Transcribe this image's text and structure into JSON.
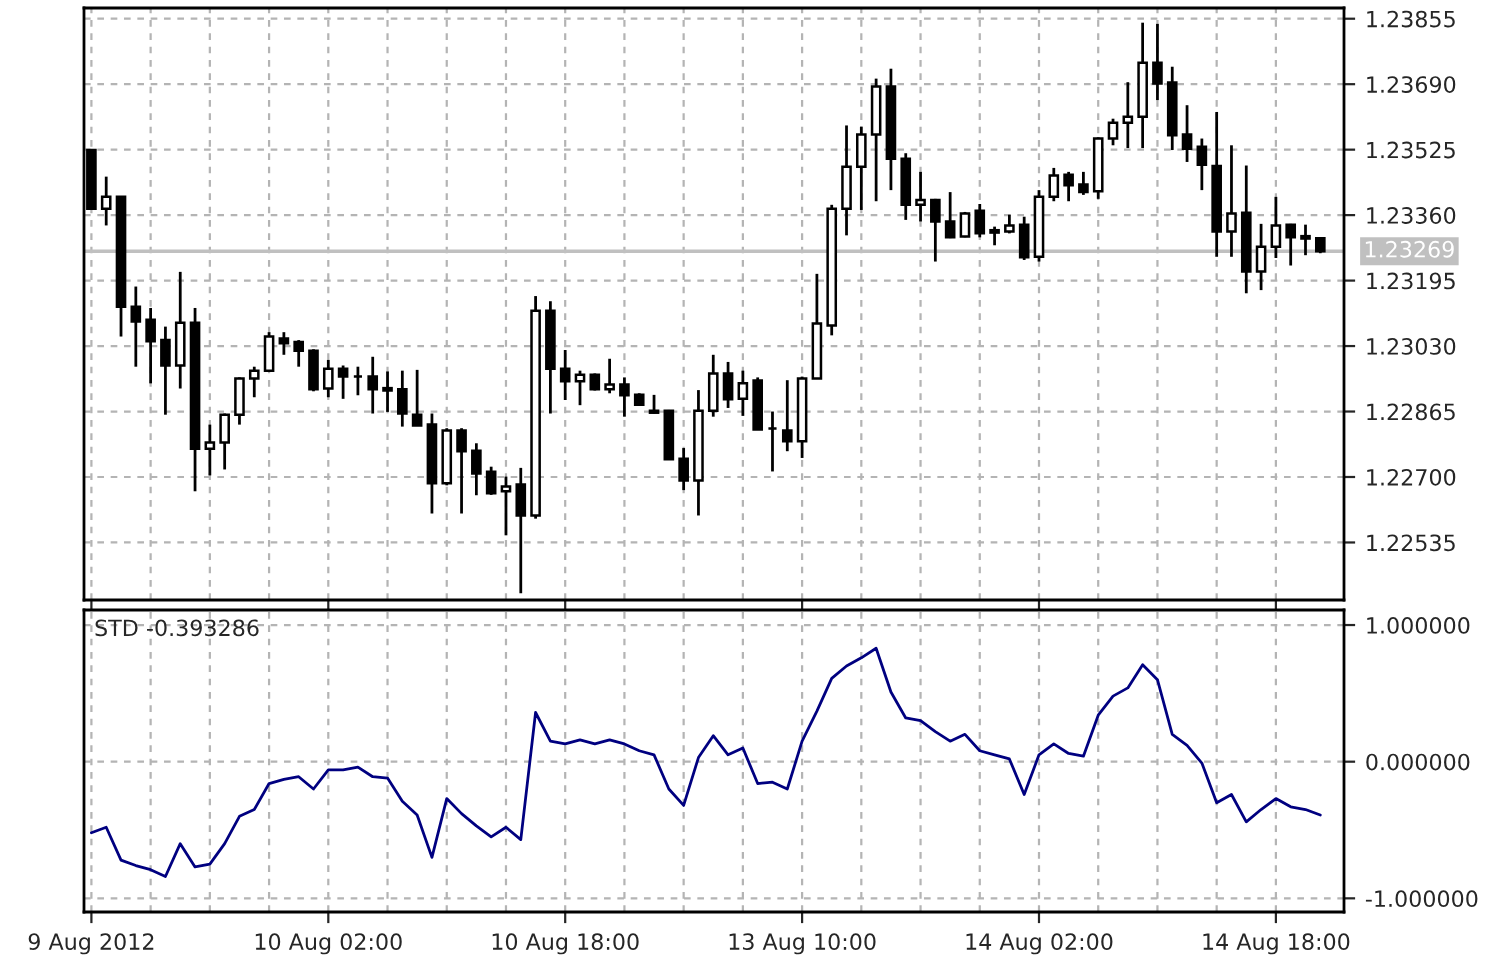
{
  "chart_data": [
    {
      "type": "candlestick",
      "categories": [
        null,
        null,
        null,
        null,
        null,
        null,
        null,
        null,
        null,
        null,
        null,
        null,
        null,
        null,
        null,
        null,
        null,
        null,
        null,
        null,
        null,
        null,
        null,
        null,
        null,
        null,
        null,
        null,
        null,
        null,
        null,
        null,
        null,
        null,
        null,
        null,
        null,
        null,
        null,
        null,
        null,
        null,
        null,
        null,
        null,
        null,
        null,
        null,
        null,
        null,
        null,
        null,
        null,
        null,
        null,
        null,
        null,
        null,
        null,
        null,
        null,
        null,
        null,
        null,
        null,
        null,
        null,
        null,
        null,
        null,
        null,
        null,
        null,
        null,
        null,
        null,
        null,
        null,
        null,
        null,
        null,
        null,
        null,
        null
      ],
      "ohlc": [
        [
          1.23524,
          1.23524,
          1.23376,
          1.23376
        ],
        [
          1.23376,
          1.23457,
          1.23334,
          1.23406
        ],
        [
          1.23406,
          1.23406,
          1.23054,
          1.23129
        ],
        [
          1.23129,
          1.2318,
          1.22978,
          1.23092
        ],
        [
          1.23096,
          1.23126,
          1.22936,
          1.23042
        ],
        [
          1.23045,
          1.23079,
          1.22857,
          1.22981
        ],
        [
          1.22981,
          1.23217,
          1.22923,
          1.23089
        ],
        [
          1.23089,
          1.23126,
          1.22664,
          1.22771
        ],
        [
          1.22771,
          1.22832,
          1.22704,
          1.22787
        ],
        [
          1.22787,
          1.2286,
          1.22719,
          1.22857
        ],
        [
          1.22857,
          1.22951,
          1.22832,
          1.22948
        ],
        [
          1.22948,
          1.22978,
          1.22901,
          1.22968
        ],
        [
          1.22968,
          1.23065,
          1.22968,
          1.23054
        ],
        [
          1.23049,
          1.23065,
          1.23008,
          1.23037
        ],
        [
          1.2304,
          1.23045,
          1.22978,
          1.23018
        ],
        [
          1.23018,
          1.23022,
          1.22916,
          1.22921
        ],
        [
          1.22923,
          1.22995,
          1.22901,
          1.22973
        ],
        [
          1.22973,
          1.22981,
          1.22897,
          1.22953
        ],
        [
          1.22953,
          1.22978,
          1.22906,
          1.22953
        ],
        [
          1.22953,
          1.23003,
          1.2286,
          1.22921
        ],
        [
          1.22924,
          1.22966,
          1.22864,
          1.22918
        ],
        [
          1.22921,
          1.22968,
          1.22827,
          1.2286
        ],
        [
          1.22857,
          1.2297,
          1.2283,
          1.2283
        ],
        [
          1.22832,
          1.2286,
          1.22608,
          1.22684
        ],
        [
          1.22684,
          1.22823,
          1.22679,
          1.22817
        ],
        [
          1.22817,
          1.22823,
          1.22608,
          1.22765
        ],
        [
          1.22766,
          1.22785,
          1.22654,
          1.22709
        ],
        [
          1.22713,
          1.22726,
          1.22655,
          1.22659
        ],
        [
          1.22664,
          1.22701,
          1.22553,
          1.22676
        ],
        [
          1.22681,
          1.22723,
          1.22407,
          1.22603
        ],
        [
          1.22603,
          1.23156,
          1.22595,
          1.23119
        ],
        [
          1.23119,
          1.23143,
          1.2286,
          1.22973
        ],
        [
          1.22973,
          1.2302,
          1.22894,
          1.22941
        ],
        [
          1.22941,
          1.22968,
          1.22881,
          1.22958
        ],
        [
          1.22958,
          1.22961,
          1.22918,
          1.22921
        ],
        [
          1.22921,
          1.22998,
          1.22911,
          1.22933
        ],
        [
          1.22933,
          1.22951,
          1.22852,
          1.22906
        ],
        [
          1.22907,
          1.22911,
          1.22881,
          1.22882
        ],
        [
          1.22867,
          1.22907,
          1.2286,
          1.22862
        ],
        [
          1.22867,
          1.22869,
          1.22743,
          1.22745
        ],
        [
          1.22746,
          1.22773,
          1.22667,
          1.22691
        ],
        [
          1.22691,
          1.22919,
          1.22603,
          1.22867
        ],
        [
          1.22867,
          1.23008,
          1.22852,
          1.22961
        ],
        [
          1.22961,
          1.2299,
          1.22874,
          1.22896
        ],
        [
          1.22897,
          1.22968,
          1.22854,
          1.22936
        ],
        [
          1.22943,
          1.22951,
          1.2282,
          1.2282
        ],
        [
          1.22822,
          1.22865,
          1.22714,
          1.22822
        ],
        [
          1.22817,
          1.22944,
          1.22765,
          1.2279
        ],
        [
          1.2279,
          1.22953,
          1.22748,
          1.22948
        ],
        [
          1.22948,
          1.23212,
          1.22948,
          1.23087
        ],
        [
          1.23082,
          1.23386,
          1.23057,
          1.23376
        ],
        [
          1.23376,
          1.23586,
          1.23309,
          1.23482
        ],
        [
          1.23482,
          1.23583,
          1.23373,
          1.23563
        ],
        [
          1.23563,
          1.23704,
          1.23395,
          1.23684
        ],
        [
          1.23684,
          1.23729,
          1.23423,
          1.23502
        ],
        [
          1.23502,
          1.23516,
          1.23348,
          1.23386
        ],
        [
          1.23386,
          1.23469,
          1.23344,
          1.23398
        ],
        [
          1.23398,
          1.23401,
          1.23243,
          1.23344
        ],
        [
          1.23344,
          1.23418,
          1.23302,
          1.23304
        ],
        [
          1.23306,
          1.23368,
          1.23304,
          1.23364
        ],
        [
          1.23371,
          1.23388,
          1.23304,
          1.23314
        ],
        [
          1.23322,
          1.23331,
          1.23284,
          1.23316
        ],
        [
          1.23319,
          1.23361,
          1.23314,
          1.23334
        ],
        [
          1.23336,
          1.23356,
          1.23247,
          1.23254
        ],
        [
          1.23255,
          1.23423,
          1.23243,
          1.23406
        ],
        [
          1.23406,
          1.23479,
          1.23395,
          1.2346
        ],
        [
          1.23462,
          1.23469,
          1.23395,
          1.23435
        ],
        [
          1.23437,
          1.23469,
          1.23411,
          1.23418
        ],
        [
          1.2342,
          1.23556,
          1.23401,
          1.23553
        ],
        [
          1.23553,
          1.23603,
          1.23536,
          1.23593
        ],
        [
          1.23593,
          1.23695,
          1.23529,
          1.23608
        ],
        [
          1.23608,
          1.23845,
          1.23529,
          1.23744
        ],
        [
          1.23744,
          1.23842,
          1.2365,
          1.23692
        ],
        [
          1.23694,
          1.23734,
          1.23524,
          1.23561
        ],
        [
          1.23563,
          1.23637,
          1.23494,
          1.23527
        ],
        [
          1.23532,
          1.23553,
          1.23423,
          1.23487
        ],
        [
          1.23484,
          1.2362,
          1.23255,
          1.23319
        ],
        [
          1.23319,
          1.23536,
          1.23255,
          1.23364
        ],
        [
          1.23366,
          1.23485,
          1.23163,
          1.23218
        ],
        [
          1.23218,
          1.23338,
          1.23171,
          1.2328
        ],
        [
          1.2328,
          1.23406,
          1.23252,
          1.23334
        ],
        [
          1.23336,
          1.23338,
          1.23233,
          1.23304
        ],
        [
          1.23307,
          1.23336,
          1.23259,
          1.23301
        ],
        [
          1.23302,
          1.23304,
          1.23264,
          1.23269
        ]
      ],
      "ylim": [
        1.2239,
        1.23882
      ],
      "yticks": [
        {
          "value": 1.22535,
          "label": "1.22535"
        },
        {
          "value": 1.227,
          "label": "1.22700"
        },
        {
          "value": 1.22865,
          "label": "1.22865"
        },
        {
          "value": 1.2303,
          "label": "1.23030"
        },
        {
          "value": 1.23195,
          "label": "1.23195"
        },
        {
          "value": 1.2336,
          "label": "1.23360"
        },
        {
          "value": 1.23525,
          "label": "1.23525"
        },
        {
          "value": 1.2369,
          "label": "1.23690"
        },
        {
          "value": 1.23855,
          "label": "1.23855"
        }
      ],
      "ref_lines": [
        {
          "axis": "y",
          "value": 1.23269,
          "label": "1.23269",
          "color": "#c0c0c0"
        }
      ],
      "grid": true,
      "tick_labels": "y"
    },
    {
      "type": "line",
      "title": "STD -0.393286",
      "categories": [
        "9 Aug 2012",
        null,
        null,
        null,
        null,
        null,
        null,
        null,
        null,
        null,
        null,
        null,
        null,
        null,
        null,
        null,
        "10 Aug 02:00",
        null,
        null,
        null,
        null,
        null,
        null,
        null,
        null,
        null,
        null,
        null,
        null,
        null,
        null,
        null,
        "10 Aug 18:00",
        null,
        null,
        null,
        null,
        null,
        null,
        null,
        null,
        null,
        null,
        null,
        null,
        null,
        null,
        null,
        "13 Aug 10:00",
        null,
        null,
        null,
        null,
        null,
        null,
        null,
        null,
        null,
        null,
        null,
        null,
        null,
        null,
        null,
        "14 Aug 02:00",
        null,
        null,
        null,
        null,
        null,
        null,
        null,
        null,
        null,
        null,
        null,
        null,
        null,
        null,
        null,
        "14 Aug 18:00",
        null,
        null,
        null
      ],
      "series": [
        {
          "color": "#000080",
          "values": [
            -0.52,
            -0.48,
            -0.72,
            -0.76,
            -0.79,
            -0.84,
            -0.6,
            -0.77,
            -0.75,
            -0.6,
            -0.4,
            -0.35,
            -0.16,
            -0.13,
            -0.11,
            -0.2,
            -0.06,
            -0.06,
            -0.04,
            -0.11,
            -0.12,
            -0.29,
            -0.39,
            -0.7,
            -0.27,
            -0.38,
            -0.47,
            -0.55,
            -0.48,
            -0.57,
            0.36,
            0.15,
            0.13,
            0.16,
            0.13,
            0.16,
            0.13,
            0.08,
            0.05,
            -0.2,
            -0.32,
            0.03,
            0.19,
            0.05,
            0.1,
            -0.16,
            -0.15,
            -0.2,
            0.15,
            0.37,
            0.61,
            0.7,
            0.76,
            0.83,
            0.51,
            0.32,
            0.3,
            0.22,
            0.15,
            0.2,
            0.08,
            0.05,
            0.02,
            -0.24,
            0.05,
            0.13,
            0.06,
            0.04,
            0.34,
            0.48,
            0.54,
            0.71,
            0.6,
            0.2,
            0.12,
            -0.01,
            -0.3,
            -0.24,
            -0.44,
            -0.35,
            -0.27,
            -0.33,
            -0.35,
            -0.39
          ]
        }
      ],
      "ylim": [
        -1.1,
        1.11
      ],
      "yticks": [
        {
          "value": -1,
          "label": "-1.000000"
        },
        {
          "value": 0,
          "label": "0.000000"
        },
        {
          "value": 1,
          "label": "1.000000"
        }
      ],
      "grid": true
    }
  ]
}
